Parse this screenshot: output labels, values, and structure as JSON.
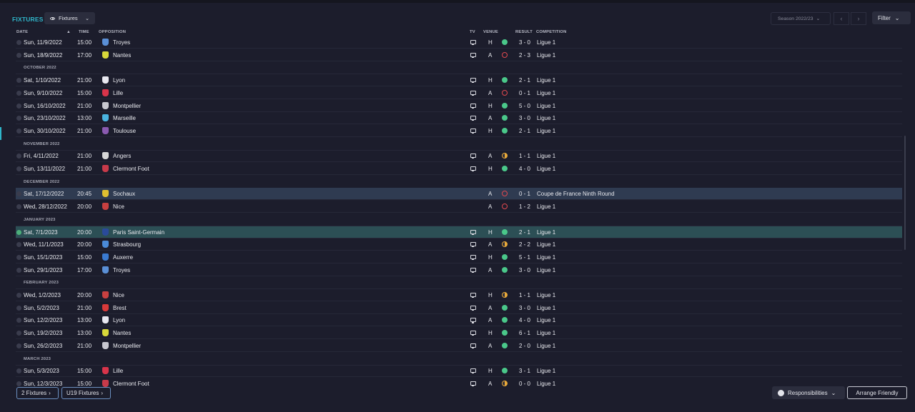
{
  "header": {
    "title": "FIXTURES",
    "view_label": "Fixtures",
    "season_label": "Season 2022/23",
    "filter_label": "Filter"
  },
  "columns": {
    "date": "DATE",
    "sort_indicator": "▲",
    "time": "TIME",
    "opposition": "OPPOSITION",
    "tv": "TV",
    "venue": "VENUE",
    "result": "RESULT",
    "competition": "COMPETITION"
  },
  "rows": [
    {
      "type": "match",
      "date": "Sun, 11/9/2022",
      "time": "15:00",
      "opponent": "Troyes",
      "crest_color": "#5a8fd6",
      "tv": true,
      "venue": "H",
      "outcome": "win",
      "score": "3 - 0",
      "competition": "Ligue 1"
    },
    {
      "type": "match",
      "date": "Sun, 18/9/2022",
      "time": "17:00",
      "opponent": "Nantes",
      "crest_color": "#d8d83a",
      "tv": true,
      "venue": "A",
      "outcome": "loss",
      "score": "2 - 3",
      "competition": "Ligue 1"
    },
    {
      "type": "month",
      "label": "OCTOBER 2022"
    },
    {
      "type": "match",
      "date": "Sat, 1/10/2022",
      "time": "21:00",
      "opponent": "Lyon",
      "crest_color": "#e8e8f0",
      "tv": true,
      "venue": "H",
      "outcome": "win",
      "score": "2 - 1",
      "competition": "Ligue 1"
    },
    {
      "type": "match",
      "date": "Sun, 9/10/2022",
      "time": "15:00",
      "opponent": "Lille",
      "crest_color": "#d8344a",
      "tv": true,
      "venue": "A",
      "outcome": "loss",
      "score": "0 - 1",
      "competition": "Ligue 1"
    },
    {
      "type": "match",
      "date": "Sun, 16/10/2022",
      "time": "21:00",
      "opponent": "Montpellier",
      "crest_color": "#c8c8d0",
      "tv": true,
      "venue": "H",
      "outcome": "win",
      "score": "5 - 0",
      "competition": "Ligue 1"
    },
    {
      "type": "match",
      "date": "Sun, 23/10/2022",
      "time": "13:00",
      "opponent": "Marseille",
      "crest_color": "#4ab4e0",
      "tv": true,
      "venue": "A",
      "outcome": "win",
      "score": "3 - 0",
      "competition": "Ligue 1"
    },
    {
      "type": "match",
      "date": "Sun, 30/10/2022",
      "time": "21:00",
      "opponent": "Toulouse",
      "crest_color": "#8a5ab0",
      "tv": true,
      "venue": "H",
      "outcome": "win",
      "score": "2 - 1",
      "competition": "Ligue 1"
    },
    {
      "type": "month",
      "label": "NOVEMBER 2022"
    },
    {
      "type": "match",
      "date": "Fri, 4/11/2022",
      "time": "21:00",
      "opponent": "Angers",
      "crest_color": "#d8d8d8",
      "tv": true,
      "venue": "A",
      "outcome": "draw",
      "score": "1 - 1",
      "competition": "Ligue 1"
    },
    {
      "type": "match",
      "date": "Sun, 13/11/2022",
      "time": "21:00",
      "opponent": "Clermont Foot",
      "crest_color": "#c83a4a",
      "tv": true,
      "venue": "H",
      "outcome": "win",
      "score": "4 - 0",
      "competition": "Ligue 1"
    },
    {
      "type": "month",
      "label": "DECEMBER 2022"
    },
    {
      "type": "match",
      "date": "Sat, 17/12/2022",
      "time": "20:45",
      "opponent": "Sochaux",
      "crest_color": "#e0c030",
      "tv": false,
      "venue": "A",
      "outcome": "loss",
      "score": "0 - 1",
      "competition": "Coupe de France Ninth Round",
      "state": "selected"
    },
    {
      "type": "match",
      "date": "Wed, 28/12/2022",
      "time": "20:00",
      "opponent": "Nice",
      "crest_color": "#c84040",
      "tv": false,
      "venue": "A",
      "outcome": "loss",
      "score": "1 - 2",
      "competition": "Ligue 1"
    },
    {
      "type": "month",
      "label": "JANUARY 2023"
    },
    {
      "type": "match",
      "date": "Sat, 7/1/2023",
      "time": "20:00",
      "opponent": "Paris Saint-Germain",
      "crest_color": "#2a4a9a",
      "tv": true,
      "venue": "H",
      "outcome": "win",
      "score": "2 - 1",
      "competition": "Ligue 1",
      "state": "current"
    },
    {
      "type": "match",
      "date": "Wed, 11/1/2023",
      "time": "20:00",
      "opponent": "Strasbourg",
      "crest_color": "#4a8ad8",
      "tv": true,
      "venue": "A",
      "outcome": "draw",
      "score": "2 - 2",
      "competition": "Ligue 1"
    },
    {
      "type": "match",
      "date": "Sun, 15/1/2023",
      "time": "15:00",
      "opponent": "Auxerre",
      "crest_color": "#3a7ad0",
      "tv": true,
      "venue": "H",
      "outcome": "win",
      "score": "5 - 1",
      "competition": "Ligue 1"
    },
    {
      "type": "match",
      "date": "Sun, 29/1/2023",
      "time": "17:00",
      "opponent": "Troyes",
      "crest_color": "#5a8fd6",
      "tv": true,
      "venue": "A",
      "outcome": "win",
      "score": "3 - 0",
      "competition": "Ligue 1"
    },
    {
      "type": "month",
      "label": "FEBRUARY 2023"
    },
    {
      "type": "match",
      "date": "Wed, 1/2/2023",
      "time": "20:00",
      "opponent": "Nice",
      "crest_color": "#c84040",
      "tv": true,
      "venue": "H",
      "outcome": "draw",
      "score": "1 - 1",
      "competition": "Ligue 1"
    },
    {
      "type": "match",
      "date": "Sun, 5/2/2023",
      "time": "21:00",
      "opponent": "Brest",
      "crest_color": "#d83a3a",
      "tv": true,
      "venue": "A",
      "outcome": "win",
      "score": "3 - 0",
      "competition": "Ligue 1"
    },
    {
      "type": "match",
      "date": "Sun, 12/2/2023",
      "time": "13:00",
      "opponent": "Lyon",
      "crest_color": "#e8e8f0",
      "tv": true,
      "venue": "A",
      "outcome": "win",
      "score": "4 - 0",
      "competition": "Ligue 1"
    },
    {
      "type": "match",
      "date": "Sun, 19/2/2023",
      "time": "13:00",
      "opponent": "Nantes",
      "crest_color": "#d8d83a",
      "tv": true,
      "venue": "H",
      "outcome": "win",
      "score": "6 - 1",
      "competition": "Ligue 1"
    },
    {
      "type": "match",
      "date": "Sun, 26/2/2023",
      "time": "21:00",
      "opponent": "Montpellier",
      "crest_color": "#c8c8d0",
      "tv": true,
      "venue": "A",
      "outcome": "win",
      "score": "2 - 0",
      "competition": "Ligue 1"
    },
    {
      "type": "month",
      "label": "MARCH 2023"
    },
    {
      "type": "match",
      "date": "Sun, 5/3/2023",
      "time": "15:00",
      "opponent": "Lille",
      "crest_color": "#d8344a",
      "tv": true,
      "venue": "H",
      "outcome": "win",
      "score": "3 - 1",
      "competition": "Ligue 1"
    },
    {
      "type": "match",
      "date": "Sun, 12/3/2023",
      "time": "15:00",
      "opponent": "Clermont Foot",
      "crest_color": "#c83a4a",
      "tv": true,
      "venue": "A",
      "outcome": "draw",
      "score": "0 - 0",
      "competition": "Ligue 1"
    }
  ],
  "footer": {
    "tab1": "2 Fixtures",
    "tab2": "U19 Fixtures",
    "responsibilities": "Responsibilities",
    "arrange": "Arrange Friendly"
  },
  "colors": {
    "accent": "#2fb5c9",
    "win": "#4ac88a",
    "loss": "#e0494f",
    "draw": "#e8a93a"
  }
}
